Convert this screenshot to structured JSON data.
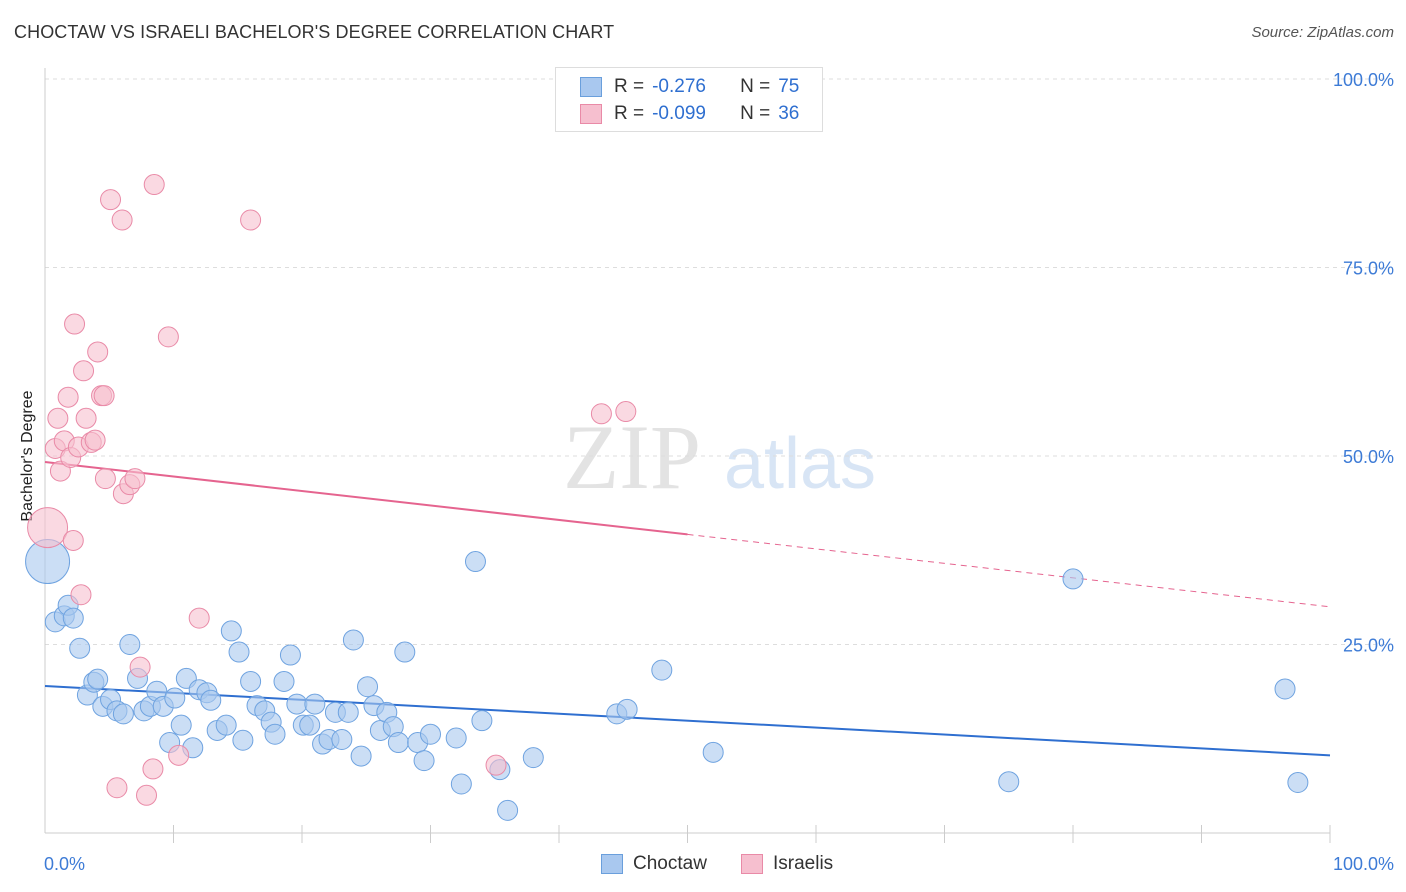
{
  "header": {
    "title": "CHOCTAW VS ISRAELI BACHELOR'S DEGREE CORRELATION CHART",
    "source": "Source: ZipAtlas.com"
  },
  "watermark": {
    "zip": "ZIP",
    "atlas": "atlas"
  },
  "legend": {
    "rows": [
      {
        "r_label": "R =",
        "r_value": "-0.276",
        "n_label": "N =",
        "n_value": "75",
        "color": "#a9c8ef",
        "border": "#6a9fdc"
      },
      {
        "r_label": "R =",
        "r_value": "-0.099",
        "n_label": "N =",
        "n_value": "36",
        "color": "#f6bfcf",
        "border": "#e98aa7"
      }
    ]
  },
  "bottom_legend": {
    "items": [
      {
        "label": "Choctaw",
        "color": "#a9c8ef",
        "border": "#6a9fdc"
      },
      {
        "label": "Israelis",
        "color": "#f6bfcf",
        "border": "#e98aa7"
      }
    ]
  },
  "chart_data": {
    "type": "scatter",
    "title": "CHOCTAW VS ISRAELI BACHELOR'S DEGREE CORRELATION CHART",
    "xlabel": "",
    "ylabel": "Bachelor's Degree",
    "xlim": [
      0,
      100
    ],
    "ylim": [
      0,
      100
    ],
    "x_tick_labels": [
      "0.0%",
      "100.0%"
    ],
    "y_tick_labels": [
      "25.0%",
      "50.0%",
      "75.0%",
      "100.0%"
    ],
    "y_ticks": [
      25,
      50,
      75,
      100
    ],
    "grid": "horizontal dashed",
    "legend_position": "top-center",
    "series": [
      {
        "name": "Choctaw",
        "color": "#6fa3e0",
        "fill": "#a9c8ef",
        "trend": {
          "x": [
            0,
            100
          ],
          "y": [
            19.5,
            10.3
          ],
          "solid_to": 100,
          "color": "#2f6fd0"
        },
        "points": [
          [
            0.2,
            36,
            22
          ],
          [
            0.8,
            28,
            10
          ],
          [
            1.5,
            28.8,
            10
          ],
          [
            1.8,
            30.2,
            10
          ],
          [
            2.2,
            28.5,
            10
          ],
          [
            2.7,
            24.5,
            10
          ],
          [
            3.3,
            18.3,
            10
          ],
          [
            3.8,
            20,
            10
          ],
          [
            4.1,
            20.4,
            10
          ],
          [
            4.5,
            16.8,
            10
          ],
          [
            5.1,
            17.7,
            10
          ],
          [
            5.6,
            16.2,
            10
          ],
          [
            6.1,
            15.8,
            10
          ],
          [
            6.6,
            25,
            10
          ],
          [
            7.2,
            20.5,
            10
          ],
          [
            7.7,
            16.2,
            10
          ],
          [
            8.2,
            16.8,
            10
          ],
          [
            8.7,
            18.8,
            10
          ],
          [
            9.2,
            16.8,
            10
          ],
          [
            9.7,
            12,
            10
          ],
          [
            10.1,
            17.9,
            10
          ],
          [
            10.6,
            14.3,
            10
          ],
          [
            11,
            20.5,
            10
          ],
          [
            11.5,
            11.3,
            10
          ],
          [
            12,
            19,
            10
          ],
          [
            12.6,
            18.6,
            10
          ],
          [
            12.9,
            17.6,
            10
          ],
          [
            13.4,
            13.6,
            10
          ],
          [
            14.1,
            14.3,
            10
          ],
          [
            14.5,
            26.8,
            10
          ],
          [
            15.1,
            24,
            10
          ],
          [
            15.4,
            12.3,
            10
          ],
          [
            16,
            20.1,
            10
          ],
          [
            16.5,
            16.9,
            10
          ],
          [
            17.1,
            16.2,
            10
          ],
          [
            17.6,
            14.7,
            10
          ],
          [
            17.9,
            13.1,
            10
          ],
          [
            18.6,
            20.1,
            10
          ],
          [
            19.1,
            23.6,
            10
          ],
          [
            19.6,
            17.1,
            10
          ],
          [
            20.1,
            14.3,
            10
          ],
          [
            20.6,
            14.3,
            10
          ],
          [
            21,
            17.1,
            10
          ],
          [
            21.6,
            11.8,
            10
          ],
          [
            22.1,
            12.4,
            10
          ],
          [
            22.6,
            16,
            10
          ],
          [
            23.1,
            12.4,
            10
          ],
          [
            23.6,
            16,
            10
          ],
          [
            24,
            25.6,
            10
          ],
          [
            24.6,
            10.2,
            10
          ],
          [
            25.1,
            19.4,
            10
          ],
          [
            25.6,
            16.9,
            10
          ],
          [
            26.1,
            13.6,
            10
          ],
          [
            26.6,
            16,
            10
          ],
          [
            27.1,
            14.1,
            10
          ],
          [
            27.5,
            12,
            10
          ],
          [
            28,
            24,
            10
          ],
          [
            29,
            12,
            10
          ],
          [
            29.5,
            9.6,
            10
          ],
          [
            30,
            13.1,
            10
          ],
          [
            32,
            12.6,
            10
          ],
          [
            32.4,
            6.5,
            10
          ],
          [
            33.5,
            36,
            10
          ],
          [
            34,
            14.9,
            10
          ],
          [
            35.4,
            8.4,
            10
          ],
          [
            36,
            3,
            10
          ],
          [
            38,
            10,
            10
          ],
          [
            44.5,
            15.8,
            10
          ],
          [
            45.3,
            16.4,
            10
          ],
          [
            48,
            21.6,
            10
          ],
          [
            52,
            10.7,
            10
          ],
          [
            75,
            6.8,
            10
          ],
          [
            80,
            33.7,
            10
          ],
          [
            96.5,
            19.1,
            10
          ],
          [
            97.5,
            6.7,
            10
          ]
        ]
      },
      {
        "name": "Israelis",
        "color": "#e98aa7",
        "fill": "#f6bfcf",
        "trend": {
          "x": [
            0,
            100
          ],
          "y": [
            49.2,
            30
          ],
          "solid_to": 50,
          "color": "#e5648f"
        },
        "points": [
          [
            0.2,
            40.5,
            20
          ],
          [
            0.8,
            51,
            10
          ],
          [
            1,
            55,
            10
          ],
          [
            1.2,
            48,
            10
          ],
          [
            1.5,
            52,
            10
          ],
          [
            1.8,
            57.8,
            10
          ],
          [
            2,
            49.8,
            10
          ],
          [
            2.2,
            38.8,
            10
          ],
          [
            2.3,
            67.5,
            10
          ],
          [
            2.6,
            51.2,
            10
          ],
          [
            2.8,
            31.6,
            10
          ],
          [
            3,
            61.3,
            10
          ],
          [
            3.2,
            55,
            10
          ],
          [
            3.6,
            51.8,
            10
          ],
          [
            3.9,
            52.1,
            10
          ],
          [
            4.1,
            63.8,
            10
          ],
          [
            4.4,
            58,
            10
          ],
          [
            4.6,
            58,
            10
          ],
          [
            4.7,
            47,
            10
          ],
          [
            5.1,
            84,
            10
          ],
          [
            5.6,
            6,
            10
          ],
          [
            6,
            81.3,
            10
          ],
          [
            6.1,
            45,
            10
          ],
          [
            6.6,
            46.2,
            10
          ],
          [
            7,
            47,
            10
          ],
          [
            7.4,
            22,
            10
          ],
          [
            7.9,
            5,
            10
          ],
          [
            8.4,
            8.5,
            10
          ],
          [
            8.5,
            86,
            10
          ],
          [
            9.6,
            65.8,
            10
          ],
          [
            10.4,
            10.3,
            10
          ],
          [
            12,
            28.5,
            10
          ],
          [
            16,
            81.3,
            10
          ],
          [
            35.1,
            9,
            10
          ],
          [
            43.3,
            55.6,
            10
          ],
          [
            45.2,
            55.9,
            10
          ]
        ]
      }
    ]
  }
}
